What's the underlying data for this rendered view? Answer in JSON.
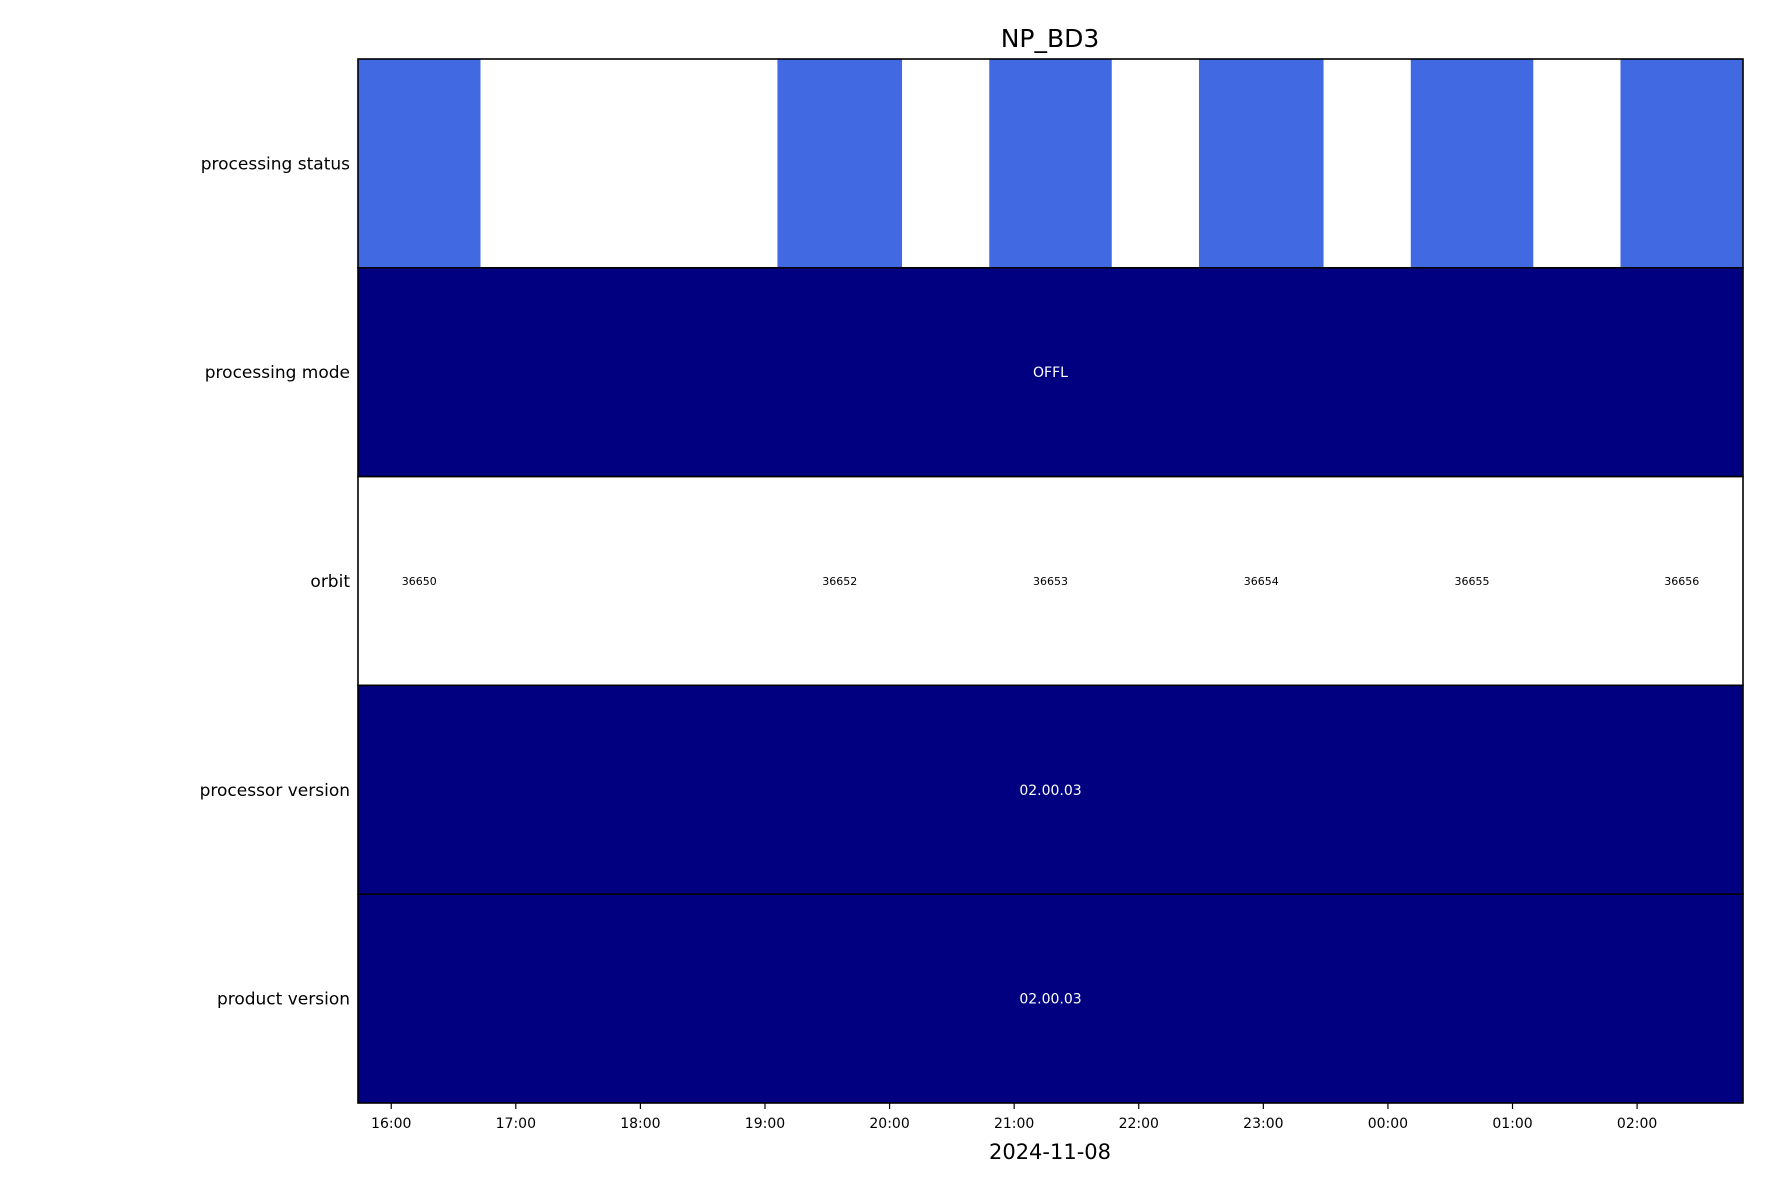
{
  "chart_data": {
    "type": "timeline",
    "title": "NP_BD3",
    "xlabel": "2024-11-08",
    "x_unit": "time (HH:MM)",
    "xlim": [
      "2024-11-08 15:44",
      "2024-11-09 02:51"
    ],
    "x_ticks": [
      "16:00",
      "17:00",
      "18:00",
      "19:00",
      "20:00",
      "21:00",
      "22:00",
      "23:00",
      "00:00",
      "01:00",
      "02:00"
    ],
    "rows": [
      {
        "label": "processing status",
        "segments": [
          {
            "start": "2024-11-08 15:44",
            "end": "2024-11-08 16:43",
            "text": "",
            "fill": "#4169e1"
          },
          {
            "start": "2024-11-08 19:06",
            "end": "2024-11-08 20:06",
            "text": "",
            "fill": "#4169e1"
          },
          {
            "start": "2024-11-08 20:48",
            "end": "2024-11-08 21:47",
            "text": "",
            "fill": "#4169e1"
          },
          {
            "start": "2024-11-08 22:29",
            "end": "2024-11-08 23:29",
            "text": "",
            "fill": "#4169e1"
          },
          {
            "start": "2024-11-09 00:11",
            "end": "2024-11-09 01:10",
            "text": "",
            "fill": "#4169e1"
          },
          {
            "start": "2024-11-09 01:52",
            "end": "2024-11-09 02:51",
            "text": "",
            "fill": "#4169e1"
          }
        ]
      },
      {
        "label": "processing mode",
        "segments": [
          {
            "start": "2024-11-08 15:44",
            "end": "2024-11-09 02:51",
            "text": "OFFL",
            "fill": "#000080"
          }
        ]
      },
      {
        "label": "orbit",
        "segments": [
          {
            "start": "2024-11-08 15:44",
            "end": "2024-11-08 16:43",
            "text": "36650",
            "fill": "#ffffff"
          },
          {
            "start": "2024-11-08 19:06",
            "end": "2024-11-08 20:06",
            "text": "36652",
            "fill": "#ffffff"
          },
          {
            "start": "2024-11-08 20:48",
            "end": "2024-11-08 21:47",
            "text": "36653",
            "fill": "#ffffff"
          },
          {
            "start": "2024-11-08 22:29",
            "end": "2024-11-08 23:29",
            "text": "36654",
            "fill": "#ffffff"
          },
          {
            "start": "2024-11-09 00:11",
            "end": "2024-11-09 01:10",
            "text": "36655",
            "fill": "#ffffff"
          },
          {
            "start": "2024-11-09 01:52",
            "end": "2024-11-09 02:51",
            "text": "36656",
            "fill": "#ffffff"
          }
        ]
      },
      {
        "label": "processor version",
        "segments": [
          {
            "start": "2024-11-08 15:44",
            "end": "2024-11-09 02:51",
            "text": "02.00.03",
            "fill": "#000080"
          }
        ]
      },
      {
        "label": "product version",
        "segments": [
          {
            "start": "2024-11-08 15:44",
            "end": "2024-11-09 02:51",
            "text": "02.00.03",
            "fill": "#000080"
          }
        ]
      }
    ],
    "grid": false,
    "legend": "none"
  }
}
